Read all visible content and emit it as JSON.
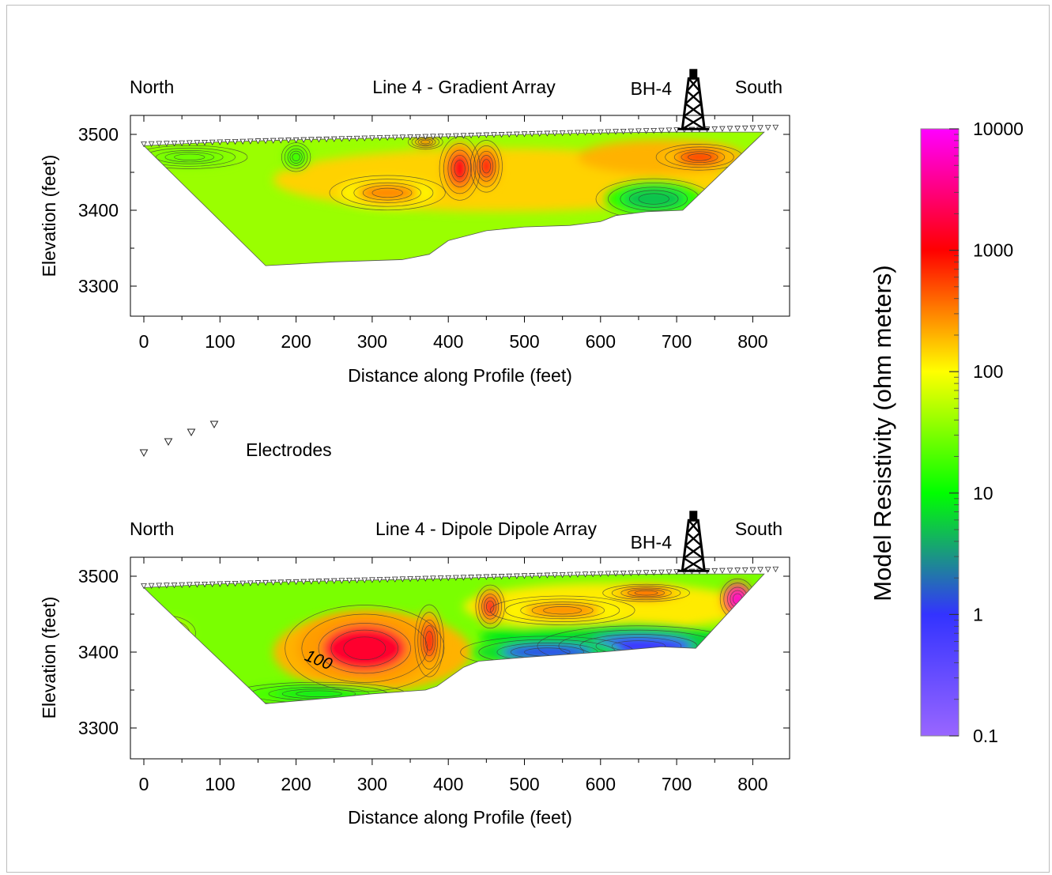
{
  "chart_data": [
    {
      "type": "heatmap",
      "title": "Line 4 - Gradient Array",
      "left_label": "North",
      "right_label": "South",
      "borehole_label": "BH-4",
      "xlabel": "Distance along Profile (feet)",
      "ylabel": "Elevation (feet)",
      "xlim": [
        -15,
        850
      ],
      "ylim": [
        3260,
        3525
      ],
      "xticks": [
        0,
        100,
        200,
        300,
        400,
        500,
        600,
        700,
        800
      ],
      "xtick_labels": [
        "0",
        "100",
        "200",
        "300",
        "400",
        "500",
        "600",
        "700",
        "800"
      ],
      "yticks": [
        3300,
        3400,
        3500
      ],
      "ytick_labels": [
        "3300",
        "3400",
        "3500"
      ],
      "borehole_x": 722,
      "section_outline": [
        [
          0,
          3485
        ],
        [
          100,
          3490
        ],
        [
          200,
          3493
        ],
        [
          300,
          3495
        ],
        [
          400,
          3497
        ],
        [
          500,
          3500
        ],
        [
          600,
          3502
        ],
        [
          700,
          3503
        ],
        [
          815,
          3503
        ],
        [
          708,
          3400
        ],
        [
          660,
          3398
        ],
        [
          620,
          3393
        ],
        [
          600,
          3385
        ],
        [
          560,
          3380
        ],
        [
          500,
          3378
        ],
        [
          450,
          3373
        ],
        [
          400,
          3360
        ],
        [
          375,
          3342
        ],
        [
          340,
          3335
        ],
        [
          250,
          3332
        ],
        [
          160,
          3327
        ],
        [
          10,
          3475
        ]
      ],
      "electrode_line": {
        "x_start": 0,
        "x_end": 830,
        "spacing": 10,
        "elev_start": 3485,
        "elev_end": 3507
      },
      "anomalies": [
        {
          "x": 415,
          "elev": 3455,
          "rx": 14,
          "ry": 22,
          "resistivity": 1200
        },
        {
          "x": 450,
          "elev": 3458,
          "rx": 11,
          "ry": 18,
          "resistivity": 1100
        },
        {
          "x": 320,
          "elev": 3423,
          "rx": 40,
          "ry": 12,
          "resistivity": 300
        },
        {
          "x": 730,
          "elev": 3470,
          "rx": 30,
          "ry": 9,
          "resistivity": 800
        },
        {
          "x": 370,
          "elev": 3490,
          "rx": 12,
          "ry": 5,
          "resistivity": 600
        },
        {
          "x": 670,
          "elev": 3415,
          "rx": 40,
          "ry": 14,
          "resistivity": 5
        },
        {
          "x": 200,
          "elev": 3470,
          "rx": 10,
          "ry": 10,
          "resistivity": 15
        },
        {
          "x": 60,
          "elev": 3470,
          "rx": 40,
          "ry": 8,
          "resistivity": 25
        }
      ]
    },
    {
      "type": "heatmap",
      "title": "Line 4 - Dipole Dipole Array",
      "left_label": "North",
      "right_label": "South",
      "borehole_label": "BH-4",
      "xlabel": "Distance along Profile (feet)",
      "ylabel": "Elevation (feet)",
      "xlim": [
        -15,
        850
      ],
      "ylim": [
        3260,
        3525
      ],
      "xticks": [
        0,
        100,
        200,
        300,
        400,
        500,
        600,
        700,
        800
      ],
      "xtick_labels": [
        "0",
        "100",
        "200",
        "300",
        "400",
        "500",
        "600",
        "700",
        "800"
      ],
      "yticks": [
        3300,
        3400,
        3500
      ],
      "ytick_labels": [
        "3300",
        "3400",
        "3500"
      ],
      "borehole_x": 722,
      "contour_annotation": {
        "text": "100",
        "x": 210,
        "elev": 3390
      },
      "section_outline": [
        [
          0,
          3485
        ],
        [
          100,
          3490
        ],
        [
          200,
          3493
        ],
        [
          300,
          3495
        ],
        [
          400,
          3497
        ],
        [
          500,
          3500
        ],
        [
          600,
          3502
        ],
        [
          700,
          3503
        ],
        [
          815,
          3503
        ],
        [
          725,
          3405
        ],
        [
          680,
          3407
        ],
        [
          600,
          3400
        ],
        [
          500,
          3393
        ],
        [
          440,
          3388
        ],
        [
          420,
          3380
        ],
        [
          385,
          3355
        ],
        [
          370,
          3350
        ],
        [
          300,
          3345
        ],
        [
          250,
          3340
        ],
        [
          160,
          3332
        ],
        [
          10,
          3475
        ]
      ],
      "electrode_line": {
        "x_start": 0,
        "x_end": 830,
        "spacing": 10,
        "elev_start": 3485,
        "elev_end": 3507
      },
      "anomalies": [
        {
          "x": 290,
          "elev": 3405,
          "rx": 55,
          "ry": 30,
          "resistivity": 1500
        },
        {
          "x": 375,
          "elev": 3415,
          "rx": 10,
          "ry": 25,
          "resistivity": 1100
        },
        {
          "x": 455,
          "elev": 3460,
          "rx": 10,
          "ry": 15,
          "resistivity": 1300
        },
        {
          "x": 780,
          "elev": 3470,
          "rx": 12,
          "ry": 14,
          "resistivity": 6000
        },
        {
          "x": 660,
          "elev": 3478,
          "rx": 30,
          "ry": 6,
          "resistivity": 700
        },
        {
          "x": 550,
          "elev": 3455,
          "rx": 50,
          "ry": 10,
          "resistivity": 300
        },
        {
          "x": 650,
          "elev": 3408,
          "rx": 70,
          "ry": 14,
          "resistivity": 0.8
        },
        {
          "x": 530,
          "elev": 3400,
          "rx": 60,
          "ry": 11,
          "resistivity": 1.2
        },
        {
          "x": 30,
          "elev": 3425,
          "rx": 20,
          "ry": 12,
          "resistivity": 90
        },
        {
          "x": 230,
          "elev": 3345,
          "rx": 60,
          "ry": 8,
          "resistivity": 8
        }
      ]
    }
  ],
  "legend": {
    "electrodes_label": "Electrodes"
  },
  "colorbar": {
    "label": "Model Resistivity (ohm meters)",
    "scale": "log",
    "range": [
      0.1,
      10000
    ],
    "tick_values": [
      10000,
      1000,
      100,
      10,
      1,
      0.1
    ],
    "tick_labels": [
      "10000",
      "1000",
      "100",
      "10",
      "1",
      "0.1"
    ],
    "colors": [
      "#9966ff",
      "#3333ff",
      "#00ff00",
      "#ffff00",
      "#ff0000",
      "#ff00ff"
    ]
  }
}
